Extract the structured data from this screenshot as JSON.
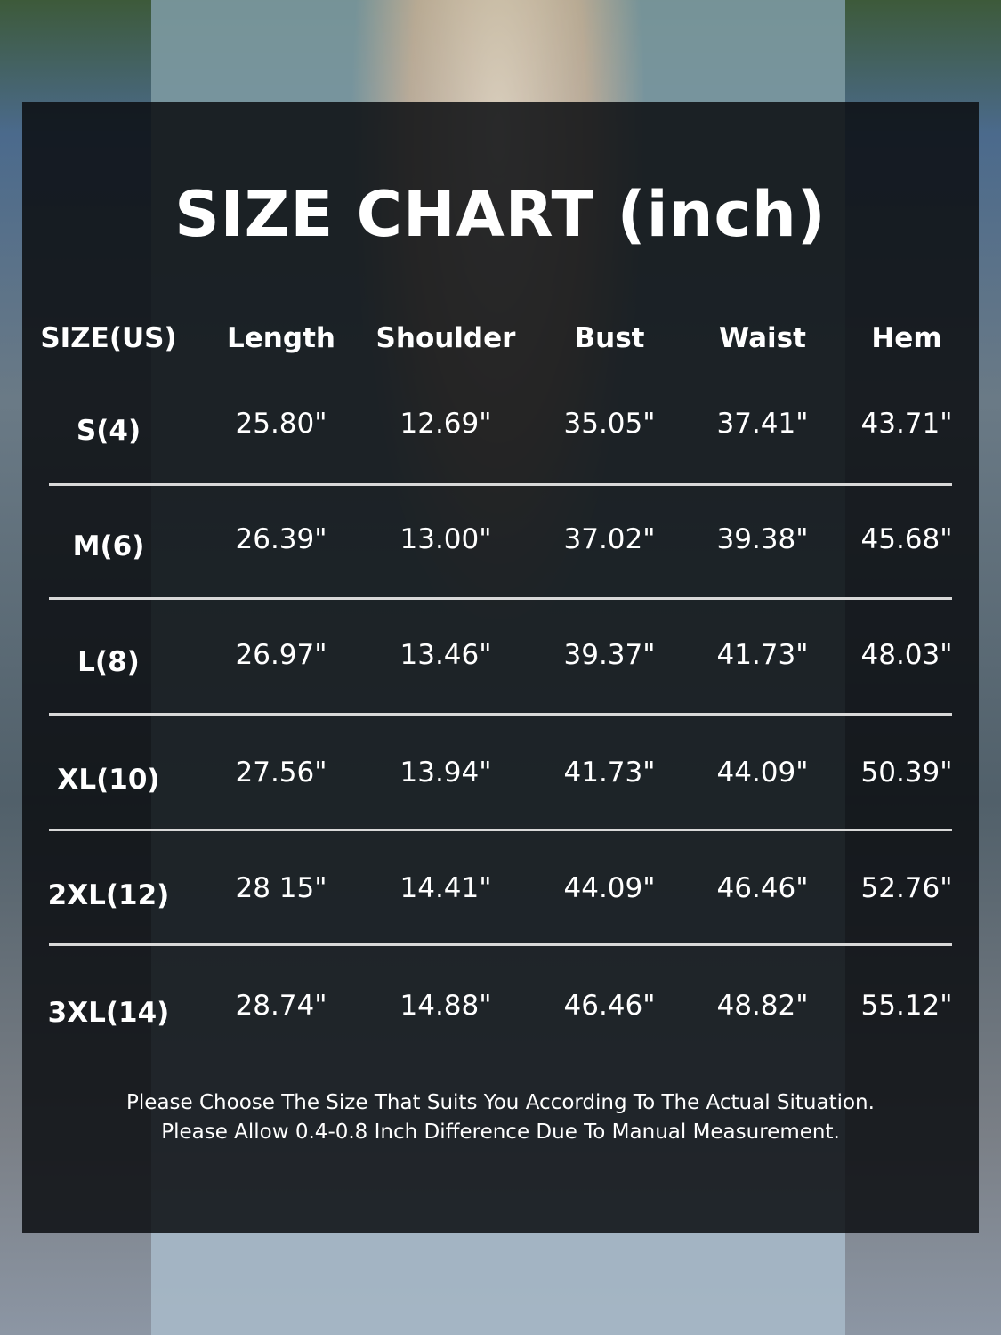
{
  "title": "SIZE CHART  (inch)",
  "columns": [
    "SIZE(US)",
    "Length",
    "Shoulder",
    "Bust",
    "Waist",
    "Hem"
  ],
  "rows": [
    [
      "S(4)",
      "25.80\"",
      "12.69\"",
      "35.05\"",
      "37.41\"",
      "43.71\""
    ],
    [
      "M(6)",
      "26.39\"",
      "13.00\"",
      "37.02\"",
      "39.38\"",
      "45.68\""
    ],
    [
      "L(8)",
      "26.97\"",
      "13.46\"",
      "39.37\"",
      "41.73\"",
      "48.03\""
    ],
    [
      "XL(10)",
      "27.56\"",
      "13.94\"",
      "41.73\"",
      "44.09\"",
      "50.39\""
    ],
    [
      "2XL(12)",
      "28 15\"",
      "14.41\"",
      "44.09\"",
      "46.46\"",
      "52.76\""
    ],
    [
      "3XL(14)",
      "28.74\"",
      "14.88\"",
      "46.46\"",
      "48.82\"",
      "55.12\""
    ]
  ],
  "notes": [
    "Please Choose The Size That Suits You According To The Actual Situation.",
    "Please Allow 0.4-0.8 Inch Difference Due To Manual Measurement."
  ]
}
